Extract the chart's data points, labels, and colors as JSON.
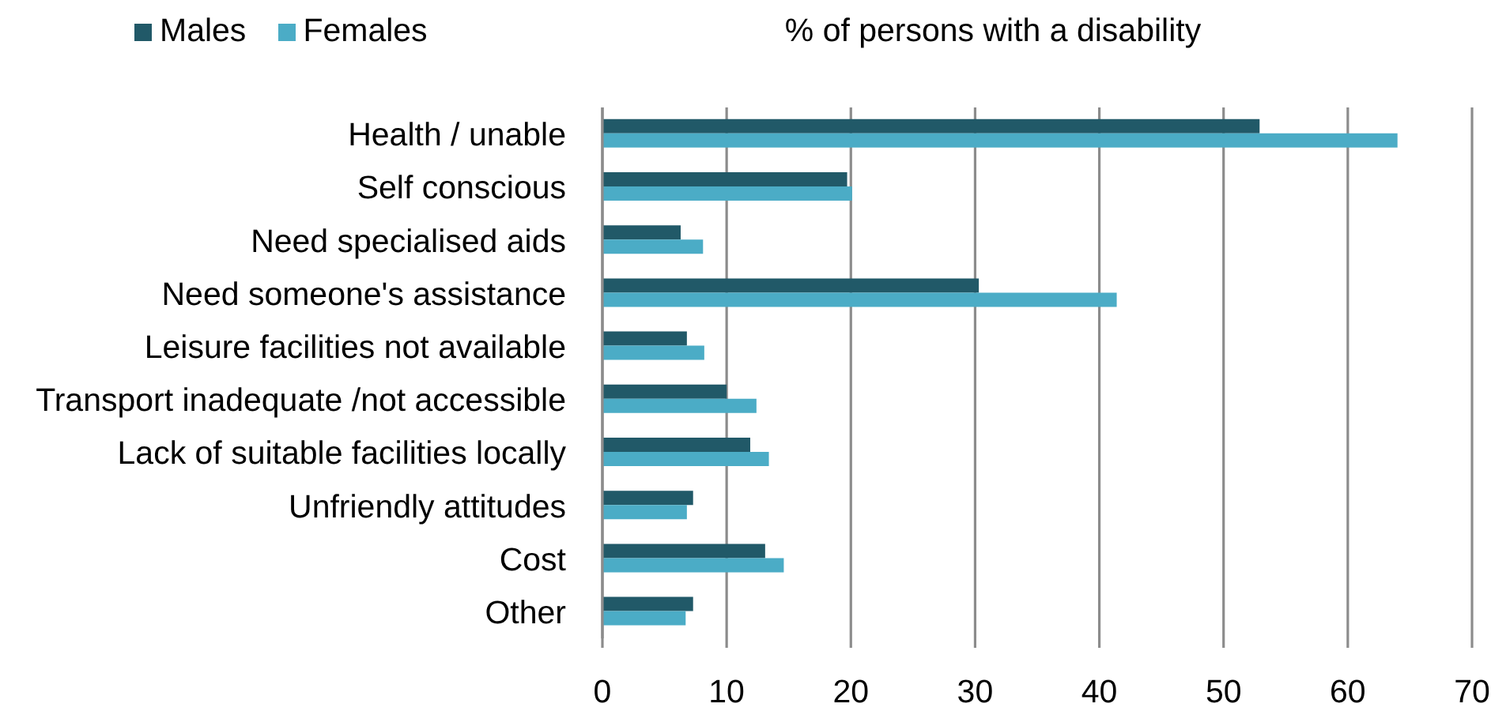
{
  "chart_data": {
    "type": "bar",
    "orientation": "horizontal",
    "title": "% of persons with a disability",
    "categories": [
      "Health / unable",
      "Self conscious",
      "Need specialised aids",
      "Need someone's assistance",
      "Leisure facilities not available",
      "Transport inadequate /not accessible",
      "Lack of suitable facilities locally",
      "Unfriendly attitudes",
      "Cost",
      "Other"
    ],
    "series": [
      {
        "name": "Males",
        "color": "#215968",
        "values": [
          52.9,
          19.7,
          6.3,
          30.3,
          6.8,
          10.0,
          11.9,
          7.3,
          13.1,
          7.3
        ]
      },
      {
        "name": "Females",
        "color": "#4bacc6",
        "values": [
          64.0,
          20.1,
          8.1,
          41.4,
          8.2,
          12.4,
          13.4,
          6.8,
          14.6,
          6.7
        ]
      }
    ],
    "xlim": [
      0,
      70
    ],
    "xticks": [
      0,
      10,
      20,
      30,
      40,
      50,
      60,
      70
    ],
    "grid": "x",
    "legend": "top left"
  }
}
